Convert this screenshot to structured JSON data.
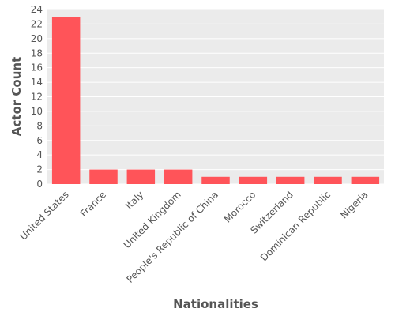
{
  "chart_data": {
    "type": "bar",
    "title": "",
    "xlabel": "Nationalities",
    "ylabel": "Actor Count",
    "categories": [
      "United States",
      "France",
      "Italy",
      "United Kingdom",
      "People's Republic of China",
      "Morocco",
      "Switzerland",
      "Dominican Republic",
      "Nigeria"
    ],
    "values": [
      23,
      2,
      2,
      2,
      1,
      1,
      1,
      1,
      1
    ],
    "ylim": [
      0,
      24
    ],
    "yticks": [
      0,
      2,
      4,
      6,
      8,
      10,
      12,
      14,
      16,
      18,
      20,
      22,
      24
    ],
    "grid": true,
    "bar_color": "#FF5459",
    "background_color": "#EBEBEB",
    "grid_color": "#FFFFFF",
    "text_color": "#555555"
  }
}
